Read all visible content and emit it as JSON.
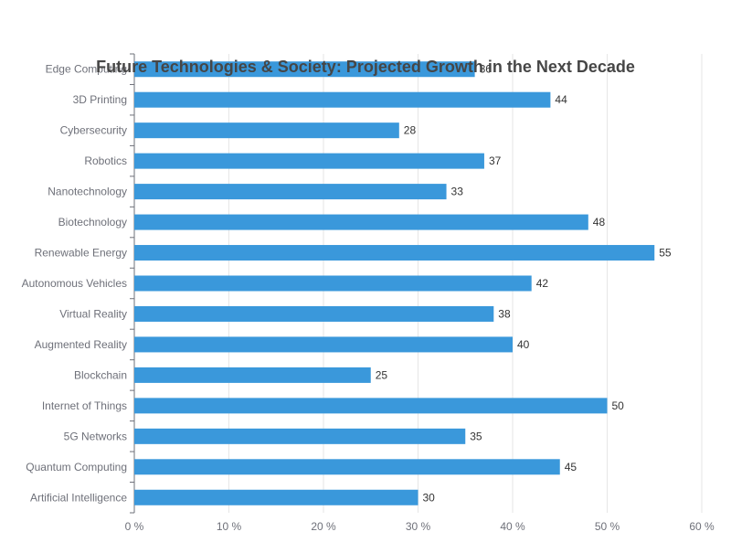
{
  "chart_data": {
    "type": "bar",
    "orientation": "horizontal",
    "title": "Future Technologies & Society: Projected Growth in the Next Decade",
    "categories": [
      "Artificial Intelligence",
      "Quantum Computing",
      "5G Networks",
      "Internet of Things",
      "Blockchain",
      "Augmented Reality",
      "Virtual Reality",
      "Autonomous Vehicles",
      "Renewable Energy",
      "Biotechnology",
      "Nanotechnology",
      "Robotics",
      "Cybersecurity",
      "3D Printing",
      "Edge Computing"
    ],
    "values": [
      30,
      45,
      35,
      50,
      25,
      40,
      38,
      42,
      55,
      48,
      33,
      37,
      28,
      44,
      36
    ],
    "xlim": [
      0,
      60
    ],
    "x_ticks": [
      "0 %",
      "10 %",
      "20 %",
      "30 %",
      "40 %",
      "50 %",
      "60 %"
    ],
    "grid": true,
    "bar_color": "#3a98db",
    "data_labels": true
  }
}
